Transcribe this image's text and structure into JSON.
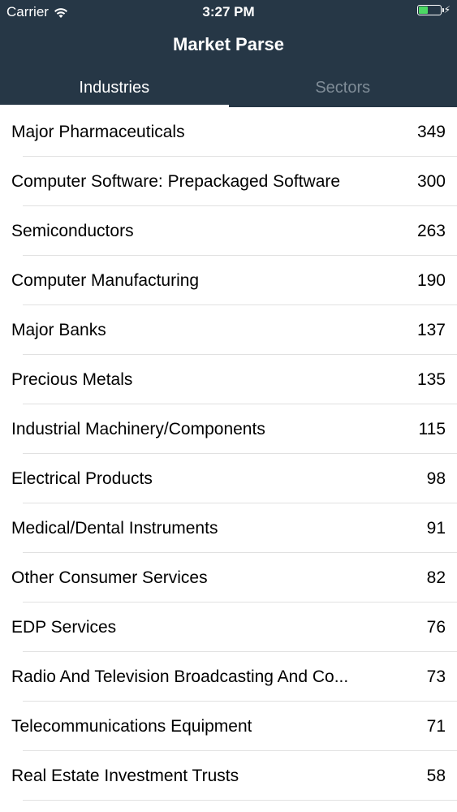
{
  "status_bar": {
    "carrier": "Carrier",
    "time": "3:27 PM",
    "battery_level": 0.4
  },
  "nav": {
    "title": "Market Parse"
  },
  "tabs": [
    {
      "label": "Industries",
      "active": true
    },
    {
      "label": "Sectors",
      "active": false
    }
  ],
  "industries": [
    {
      "name": "Major Pharmaceuticals",
      "count": "349"
    },
    {
      "name": "Computer Software: Prepackaged Software",
      "count": "300"
    },
    {
      "name": "Semiconductors",
      "count": "263"
    },
    {
      "name": "Computer Manufacturing",
      "count": "190"
    },
    {
      "name": "Major Banks",
      "count": "137"
    },
    {
      "name": "Precious Metals",
      "count": "135"
    },
    {
      "name": "Industrial Machinery/Components",
      "count": "115"
    },
    {
      "name": "Electrical Products",
      "count": "98"
    },
    {
      "name": "Medical/Dental Instruments",
      "count": "91"
    },
    {
      "name": "Other Consumer Services",
      "count": "82"
    },
    {
      "name": "EDP Services",
      "count": "76"
    },
    {
      "name": "Radio And Television Broadcasting And Co...",
      "count": "73"
    },
    {
      "name": "Telecommunications Equipment",
      "count": "71"
    },
    {
      "name": "Real Estate Investment Trusts",
      "count": "58"
    }
  ],
  "colors": {
    "header_bg": "#263746",
    "tab_inactive": "#7f8c97",
    "battery": "#4cd964"
  }
}
